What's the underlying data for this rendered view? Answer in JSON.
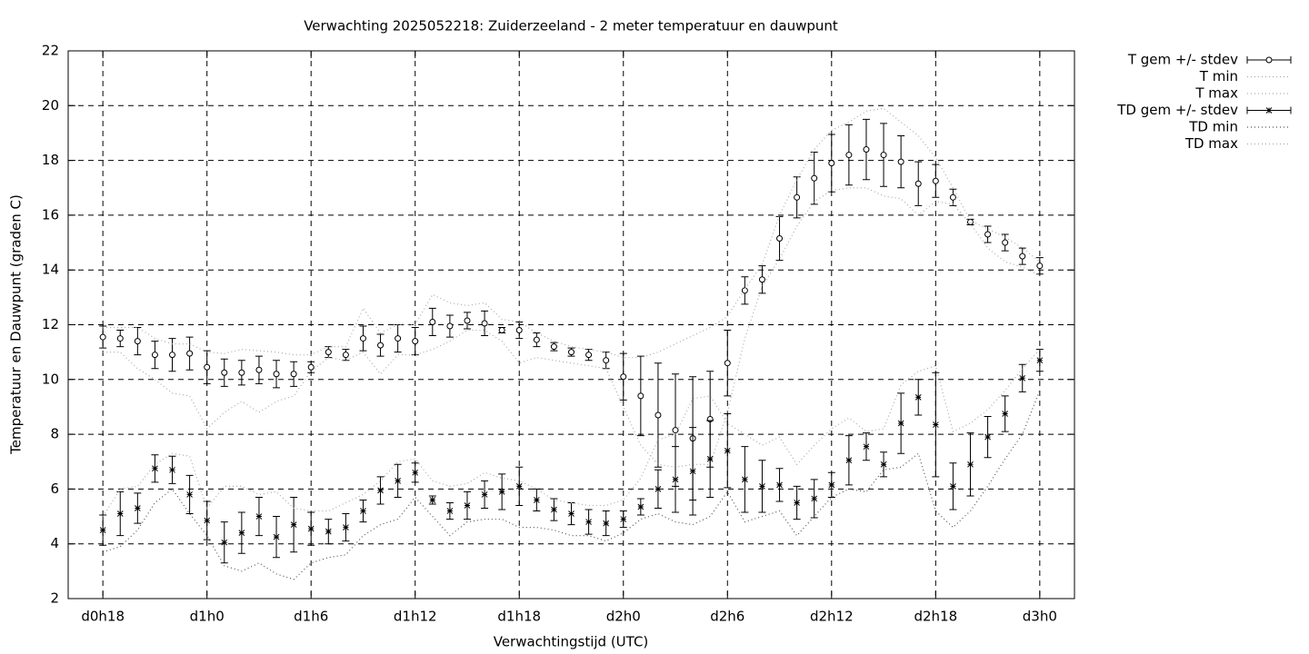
{
  "chart_data": {
    "type": "errorbar",
    "title": "Verwachting 2025052218: Zuiderzeeland - 2 meter temperatuur en dauwpunt",
    "x_label": "Verwachtingstijd (UTC)",
    "y_label": "Temperatuur en Dauwpunt (graden C)",
    "x": [
      18,
      19,
      20,
      21,
      22,
      23,
      24,
      25,
      26,
      27,
      28,
      29,
      30,
      31,
      32,
      33,
      34,
      35,
      36,
      37,
      38,
      39,
      40,
      41,
      42,
      43,
      44,
      45,
      46,
      47,
      48,
      49,
      50,
      51,
      52,
      53,
      54,
      55,
      56,
      57,
      58,
      59,
      60,
      61,
      62,
      63,
      64,
      65,
      66,
      67,
      68,
      69,
      70,
      71,
      72
    ],
    "xlim": [
      16,
      74
    ],
    "xticks": [
      {
        "value": 18,
        "label": "d0h18"
      },
      {
        "value": 24,
        "label": "d1h0"
      },
      {
        "value": 30,
        "label": "d1h6"
      },
      {
        "value": 36,
        "label": "d1h12"
      },
      {
        "value": 42,
        "label": "d1h18"
      },
      {
        "value": 48,
        "label": "d2h0"
      },
      {
        "value": 54,
        "label": "d2h6"
      },
      {
        "value": 60,
        "label": "d2h12"
      },
      {
        "value": 66,
        "label": "d2h18"
      },
      {
        "value": 72,
        "label": "d3h0"
      }
    ],
    "ylim": [
      2,
      22
    ],
    "yticks": [
      2,
      4,
      6,
      8,
      10,
      12,
      14,
      16,
      18,
      20,
      22
    ],
    "grid": true,
    "legend": "outside-top-right",
    "series": [
      {
        "name": "T gem +/- stdev",
        "color": "#000000",
        "marker": "circle",
        "line_style": "errorbar",
        "values": [
          11.55,
          11.5,
          11.4,
          10.9,
          10.9,
          10.95,
          10.45,
          10.25,
          10.25,
          10.35,
          10.2,
          10.2,
          10.45,
          11.0,
          10.9,
          11.5,
          11.25,
          11.5,
          11.4,
          12.1,
          11.95,
          12.15,
          12.05,
          11.8,
          11.8,
          11.45,
          11.2,
          11.0,
          10.9,
          10.7,
          10.1,
          9.4,
          8.7,
          8.15,
          7.85,
          8.55,
          10.6,
          13.25,
          13.65,
          15.15,
          16.65,
          17.35,
          17.9,
          18.2,
          18.4,
          18.2,
          17.95,
          17.15,
          17.25,
          16.65,
          15.75,
          15.3,
          15.0,
          14.5,
          14.15
        ],
        "errors": [
          0.4,
          0.3,
          0.5,
          0.5,
          0.6,
          0.6,
          0.6,
          0.5,
          0.45,
          0.5,
          0.5,
          0.45,
          0.2,
          0.2,
          0.2,
          0.45,
          0.4,
          0.5,
          0.5,
          0.5,
          0.4,
          0.3,
          0.45,
          0.1,
          0.3,
          0.25,
          0.15,
          0.15,
          0.2,
          0.3,
          0.85,
          1.45,
          1.9,
          2.05,
          2.25,
          1.75,
          1.2,
          0.5,
          0.5,
          0.8,
          0.75,
          0.95,
          1.05,
          1.1,
          1.1,
          1.15,
          0.95,
          0.8,
          0.6,
          0.3,
          0.1,
          0.3,
          0.3,
          0.3,
          0.3
        ]
      },
      {
        "name": "T min",
        "color": "#aaaaaa",
        "marker": "none",
        "line_style": "dotted",
        "values": [
          11.0,
          11.0,
          10.4,
          10.0,
          9.5,
          9.4,
          8.2,
          8.8,
          9.2,
          8.8,
          9.2,
          9.4,
          10.3,
          10.8,
          10.7,
          11.0,
          10.2,
          10.9,
          10.9,
          11.1,
          11.4,
          11.8,
          11.8,
          11.4,
          10.6,
          10.8,
          10.7,
          10.6,
          10.5,
          10.4,
          9.0,
          7.6,
          6.9,
          6.8,
          6.9,
          6.9,
          8.8,
          11.5,
          13.4,
          14.4,
          15.6,
          16.5,
          16.9,
          17.0,
          17.0,
          16.7,
          16.6,
          16.0,
          16.5,
          16.4,
          15.7,
          14.8,
          14.3,
          14.1,
          13.8
        ]
      },
      {
        "name": "T max",
        "color": "#aaaaaa",
        "marker": "none",
        "line_style": "dotted",
        "values": [
          11.9,
          11.9,
          11.9,
          11.5,
          11.3,
          11.3,
          11.0,
          10.95,
          11.1,
          11.05,
          11.0,
          10.9,
          10.9,
          11.2,
          11.2,
          12.6,
          11.7,
          12.0,
          12.0,
          13.1,
          12.8,
          12.7,
          12.8,
          12.2,
          12.1,
          11.7,
          11.4,
          11.2,
          11.1,
          11.0,
          10.8,
          10.8,
          11.0,
          11.3,
          11.6,
          11.9,
          12.3,
          13.3,
          14.2,
          16.0,
          17.3,
          18.4,
          19.1,
          19.4,
          19.8,
          19.9,
          19.4,
          18.9,
          18.1,
          17.0,
          15.8,
          15.5,
          15.2,
          14.8,
          14.3
        ]
      },
      {
        "name": "TD gem +/- stdev",
        "color": "#000000",
        "marker": "star",
        "line_style": "errorbar",
        "values": [
          4.5,
          5.1,
          5.3,
          6.75,
          6.7,
          5.8,
          4.85,
          4.05,
          4.4,
          5.0,
          4.25,
          4.7,
          4.55,
          4.45,
          4.6,
          5.2,
          5.95,
          6.3,
          6.6,
          5.6,
          5.2,
          5.4,
          5.8,
          5.9,
          6.1,
          5.6,
          5.25,
          5.1,
          4.8,
          4.75,
          4.9,
          5.35,
          6.0,
          6.35,
          6.65,
          7.1,
          7.4,
          6.35,
          6.1,
          6.15,
          5.5,
          5.65,
          6.15,
          7.05,
          7.55,
          6.9,
          8.4,
          9.35,
          8.35,
          6.1,
          6.9,
          7.9,
          8.75,
          10.05,
          10.7
        ],
        "errors": [
          0.55,
          0.8,
          0.55,
          0.5,
          0.5,
          0.7,
          0.7,
          0.75,
          0.75,
          0.7,
          0.75,
          1.0,
          0.6,
          0.45,
          0.5,
          0.4,
          0.5,
          0.6,
          0.35,
          0.15,
          0.3,
          0.5,
          0.5,
          0.65,
          0.7,
          0.4,
          0.4,
          0.4,
          0.45,
          0.45,
          0.3,
          0.3,
          0.7,
          1.2,
          1.6,
          1.4,
          1.35,
          1.2,
          0.95,
          0.6,
          0.6,
          0.7,
          0.45,
          0.9,
          0.5,
          0.45,
          1.1,
          0.65,
          1.9,
          0.85,
          1.15,
          0.75,
          0.65,
          0.5,
          0.4
        ]
      },
      {
        "name": "TD min",
        "color": "#555555",
        "marker": "none",
        "line_style": "dotted",
        "values": [
          3.7,
          3.9,
          4.5,
          5.5,
          6.0,
          5.1,
          4.3,
          3.2,
          3.0,
          3.3,
          2.9,
          2.7,
          3.3,
          3.5,
          3.6,
          4.3,
          4.7,
          4.9,
          5.7,
          5.0,
          4.3,
          4.8,
          4.9,
          4.9,
          4.6,
          4.6,
          4.5,
          4.3,
          4.3,
          4.1,
          4.4,
          4.9,
          5.1,
          4.8,
          4.7,
          5.0,
          5.9,
          4.8,
          5.0,
          5.2,
          4.3,
          5.0,
          5.7,
          6.0,
          5.9,
          6.7,
          6.8,
          7.3,
          5.2,
          4.6,
          5.2,
          6.1,
          7.1,
          8.0,
          9.6
        ]
      },
      {
        "name": "TD max",
        "color": "#aaaaaa",
        "marker": "none",
        "line_style": "dotted",
        "values": [
          5.0,
          6.0,
          6.1,
          6.9,
          7.3,
          7.2,
          5.3,
          6.1,
          6.1,
          5.8,
          5.9,
          5.3,
          5.2,
          5.2,
          5.5,
          5.8,
          6.3,
          7.0,
          7.1,
          6.3,
          6.1,
          6.2,
          6.6,
          6.4,
          6.3,
          6.0,
          5.6,
          5.5,
          5.4,
          5.4,
          5.6,
          6.4,
          7.8,
          8.0,
          9.3,
          9.4,
          8.4,
          8.0,
          7.6,
          7.9,
          6.9,
          7.6,
          8.2,
          8.6,
          8.1,
          8.2,
          9.8,
          10.3,
          10.5,
          8.1,
          8.4,
          8.9,
          9.6,
          10.4,
          11.1
        ]
      }
    ]
  }
}
